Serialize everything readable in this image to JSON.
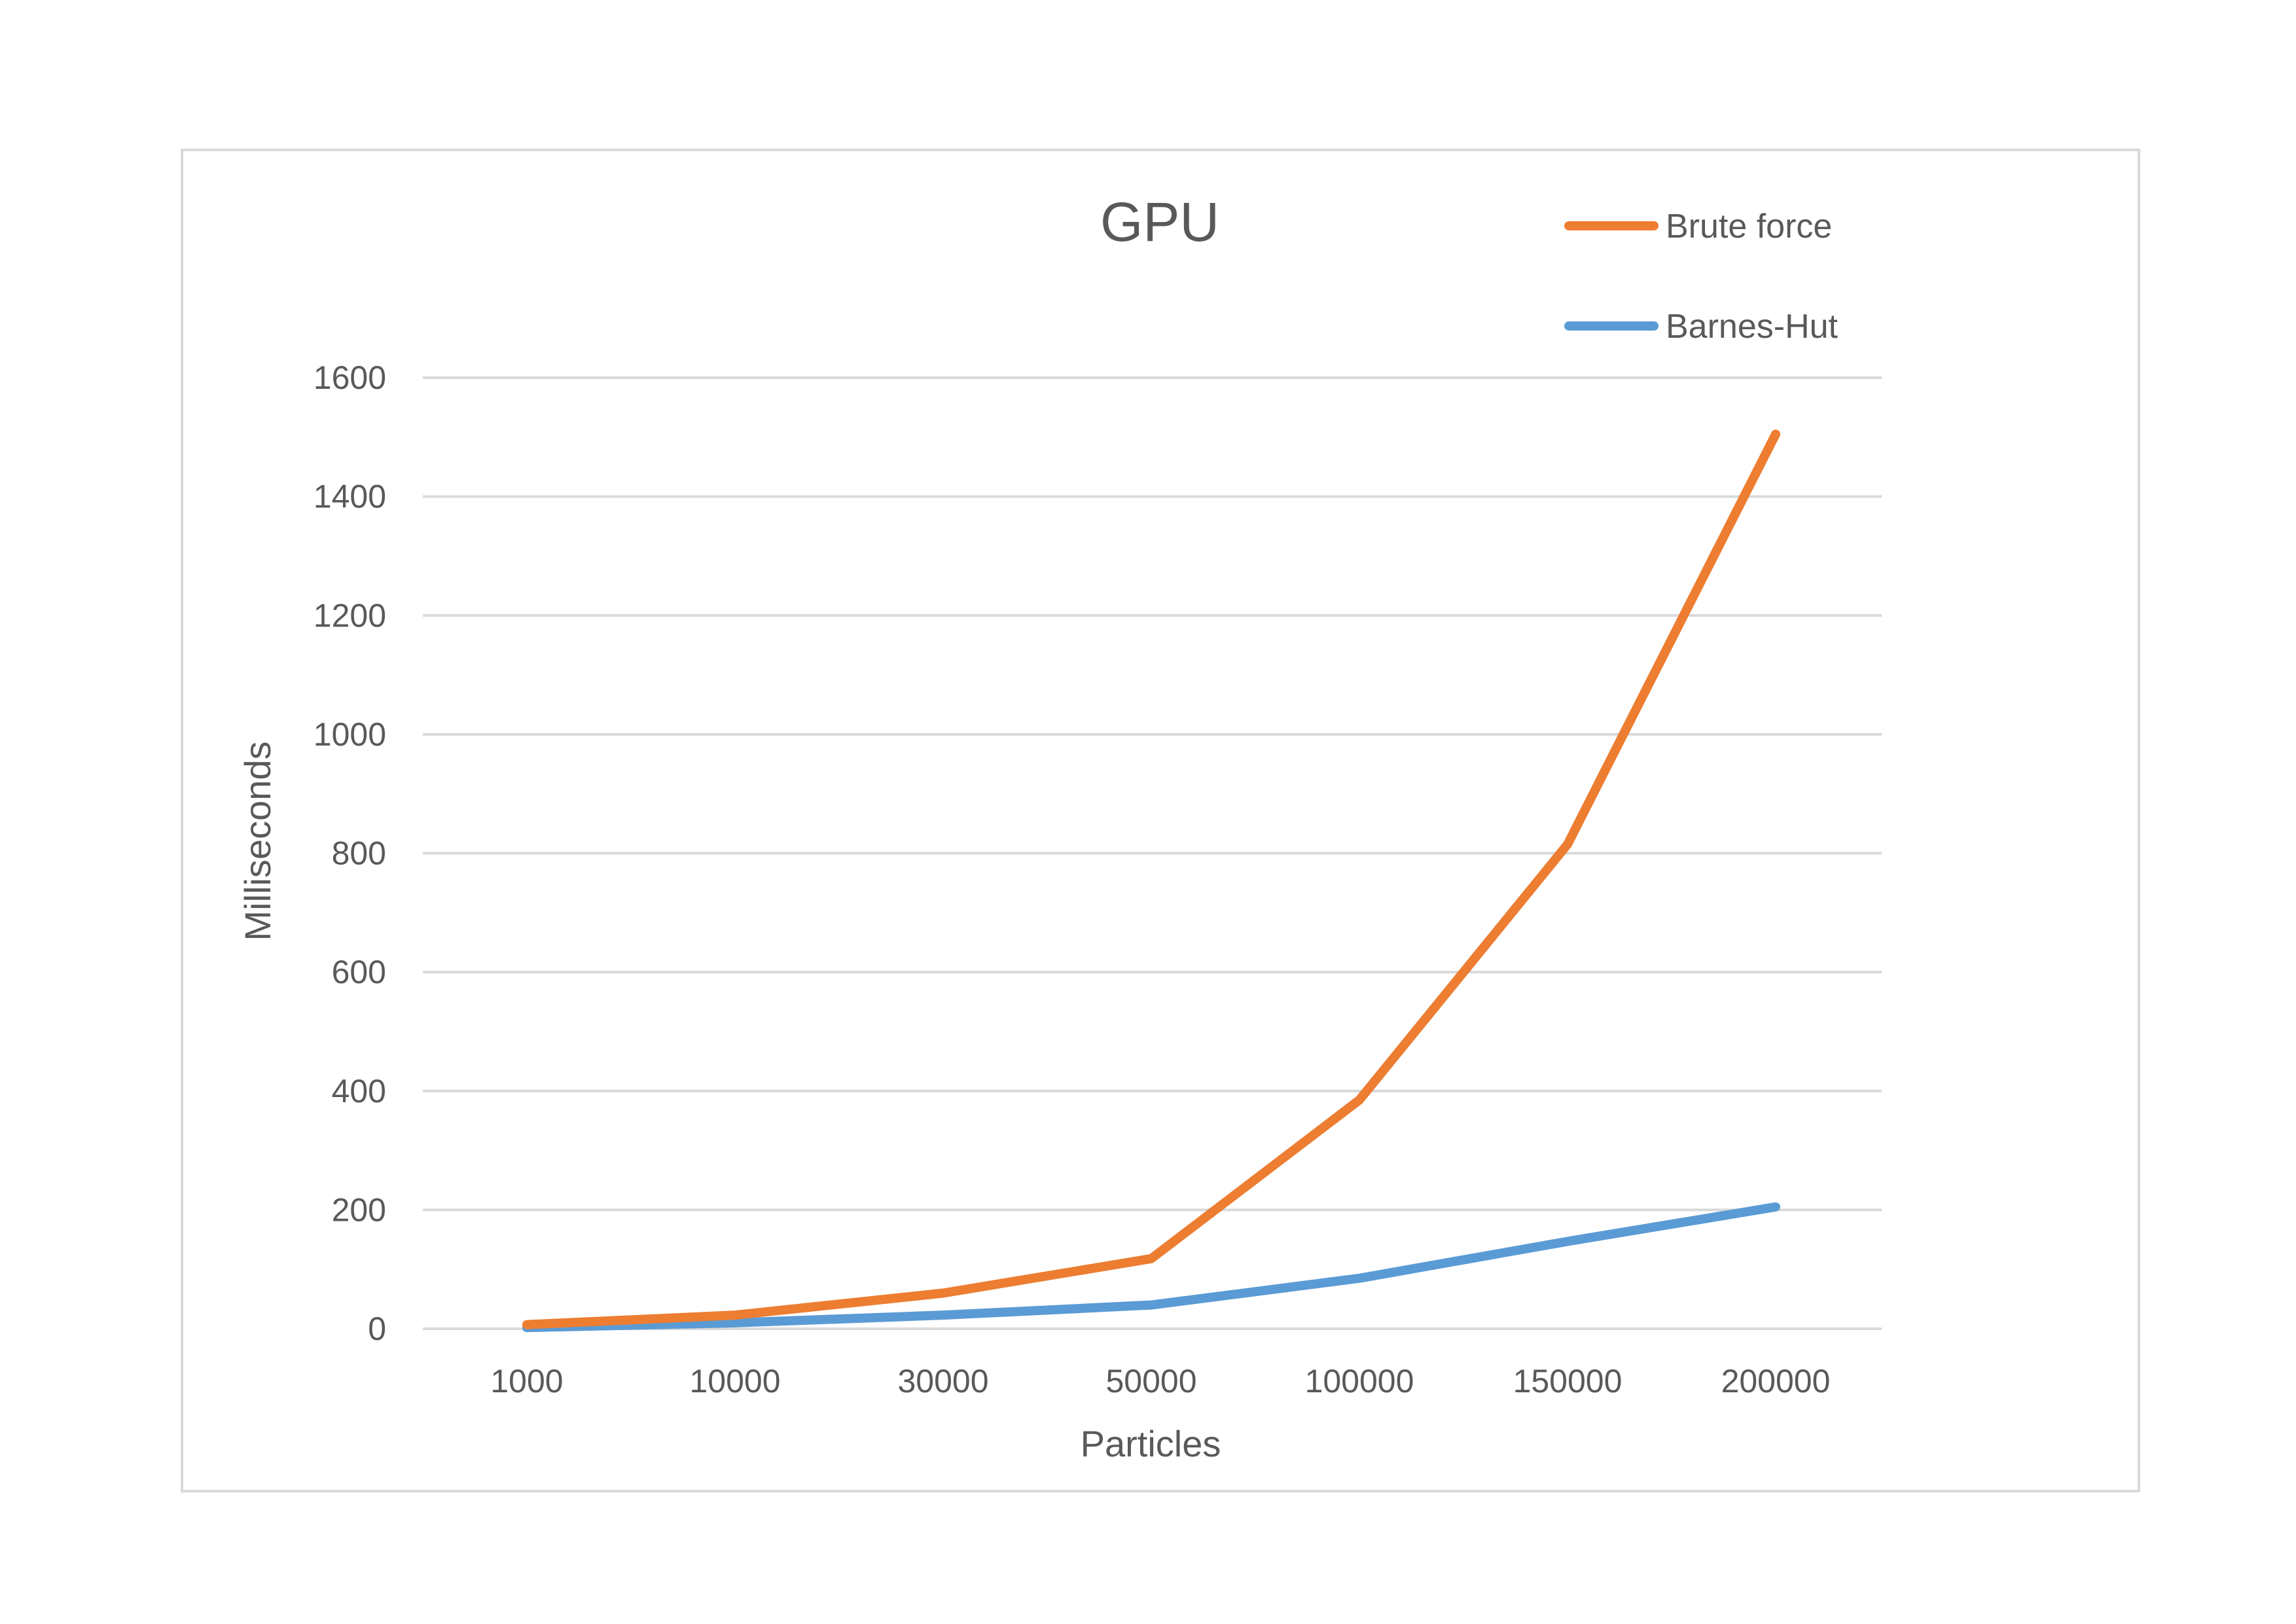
{
  "chart_data": {
    "type": "line",
    "title": "GPU",
    "xlabel": "Particles",
    "ylabel": "Milliseconds",
    "categories": [
      "1000",
      "10000",
      "30000",
      "50000",
      "100000",
      "150000",
      "200000"
    ],
    "ylim": [
      0,
      1600
    ],
    "yticks": [
      0,
      200,
      400,
      600,
      800,
      1000,
      1200,
      1400,
      1600
    ],
    "grid": true,
    "legend_position": "top-right",
    "series": [
      {
        "name": "Brute force",
        "color": "#ED7D31",
        "values": [
          7,
          23,
          60,
          118,
          385,
          815,
          1505
        ]
      },
      {
        "name": "Barnes-Hut",
        "color": "#5B9BD5",
        "values": [
          2,
          10,
          23,
          40,
          85,
          147,
          205
        ]
      }
    ]
  }
}
